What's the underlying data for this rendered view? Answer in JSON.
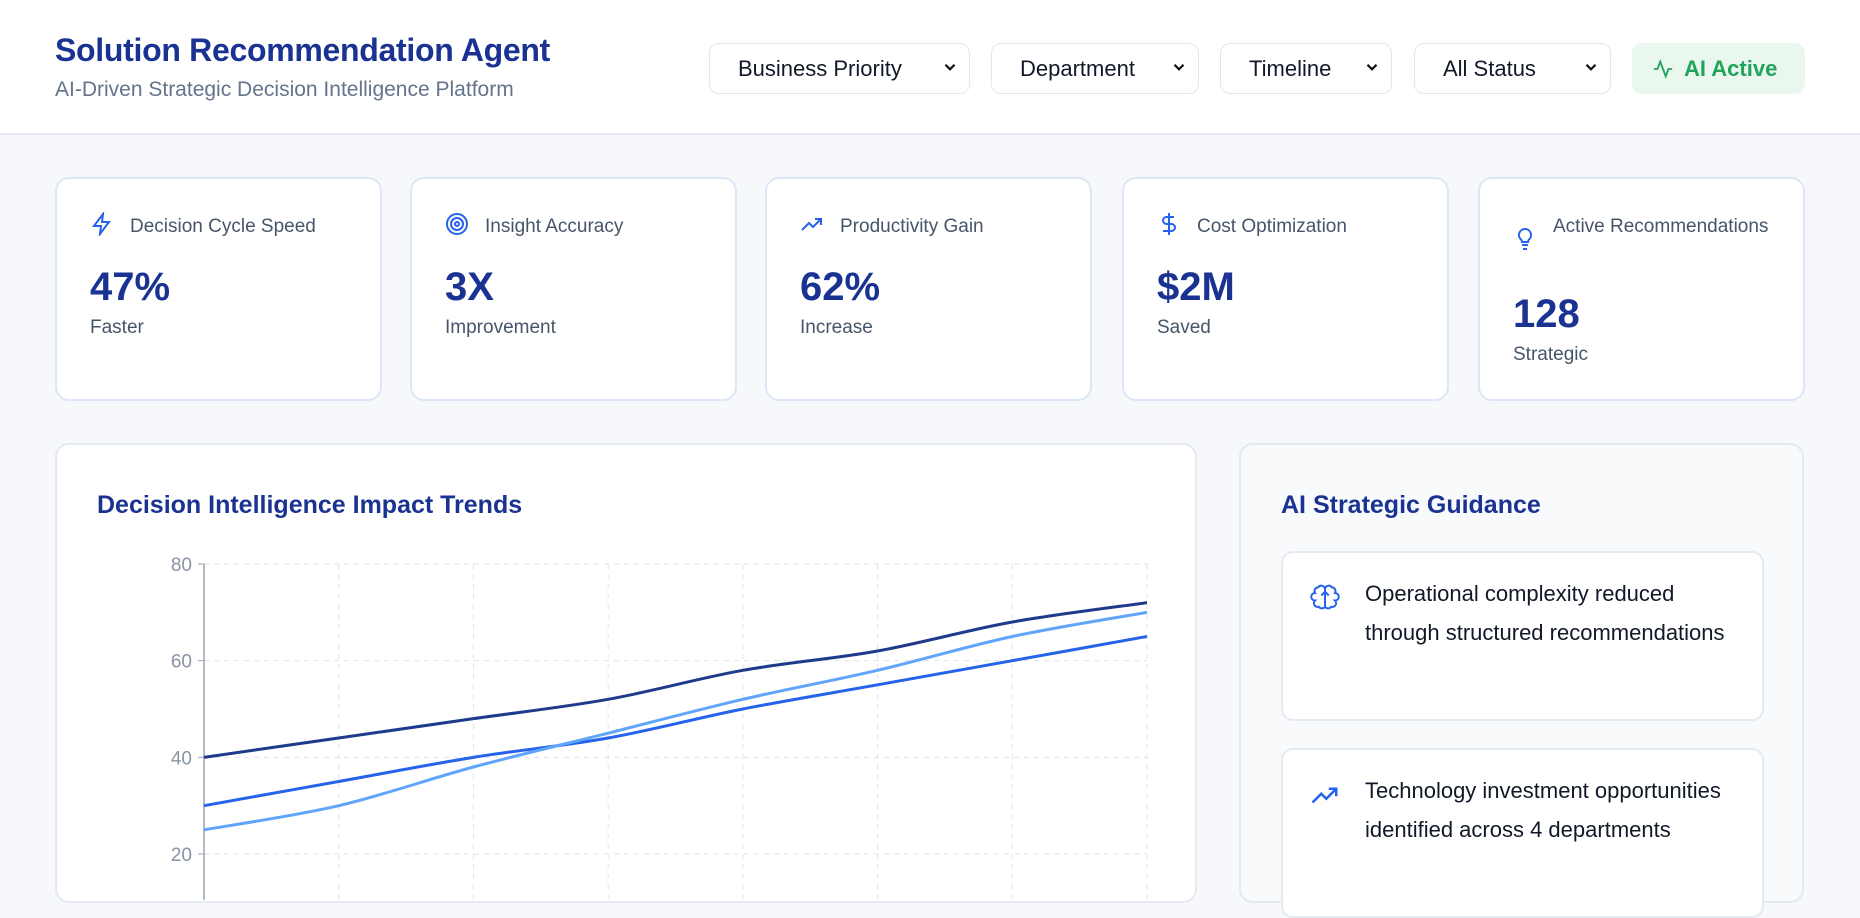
{
  "header": {
    "title": "Solution Recommendation Agent",
    "subtitle": "AI-Driven Strategic Decision Intelligence Platform",
    "filters": [
      "Business Priority",
      "Department",
      "Timeline",
      "All Status"
    ],
    "status": {
      "label": "AI Active",
      "icon": "activity-icon",
      "color": "#22a35a"
    }
  },
  "metrics": [
    {
      "icon": "zap-icon",
      "label": "Decision Cycle Speed",
      "value": "47%",
      "sub": "Faster"
    },
    {
      "icon": "target-icon",
      "label": "Insight Accuracy",
      "value": "3X",
      "sub": "Improvement"
    },
    {
      "icon": "trending-up-icon",
      "label": "Productivity Gain",
      "value": "62%",
      "sub": "Increase"
    },
    {
      "icon": "dollar-icon",
      "label": "Cost Optimization",
      "value": "$2M",
      "sub": "Saved"
    },
    {
      "icon": "lightbulb-icon",
      "label": "Active Recommendations",
      "value": "128",
      "sub": "Strategic"
    }
  ],
  "chart_panel": {
    "title": "Decision Intelligence Impact Trends"
  },
  "chart_data": {
    "type": "line",
    "title": "Decision Intelligence Impact Trends",
    "ylim": [
      0,
      80
    ],
    "yticks": [
      20,
      40,
      60,
      80
    ],
    "grid": true,
    "series": [
      {
        "color": "#1e3a8a",
        "values": [
          40,
          44,
          48,
          52,
          58,
          62,
          68,
          72
        ]
      },
      {
        "color": "#2563eb",
        "values": [
          30,
          35,
          40,
          44,
          50,
          55,
          60,
          65
        ]
      },
      {
        "color": "#60a5fa",
        "values": [
          25,
          30,
          38,
          45,
          52,
          58,
          65,
          70
        ]
      }
    ]
  },
  "guidance": {
    "title": "AI Strategic Guidance",
    "items": [
      {
        "icon": "brain-icon",
        "text": "Operational complexity reduced through structured recommendations"
      },
      {
        "icon": "trending-up-icon",
        "text": "Technology investment opportunities identified across 4 departments"
      }
    ]
  }
}
